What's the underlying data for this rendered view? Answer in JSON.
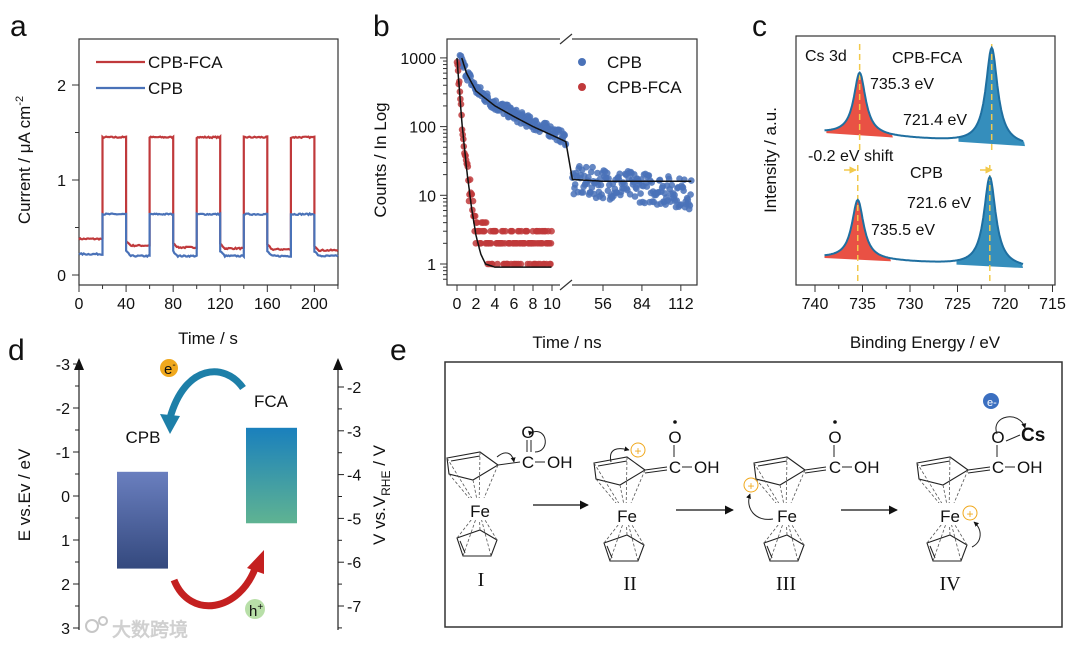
{
  "panels": {
    "a": "a",
    "b": "b",
    "c": "c",
    "d": "d",
    "e": "e"
  },
  "watermark": "大数跨境",
  "colors": {
    "red": "#c0393b",
    "blue": "#4a72b8",
    "peak_red": "#e8483a",
    "peak_blue": "#2a88b8",
    "guide": "#f2c94c",
    "orbit_e": "#f0a81c",
    "orbit_h": "#b8dfa8"
  },
  "chart_data": [
    {
      "id": "a",
      "type": "line",
      "xlabel": "Time / s",
      "ylabel_main": "Current / μA cm",
      "ylabel_sup": "-2",
      "xlim": [
        0,
        220
      ],
      "ylim": [
        -0.1,
        2.4
      ],
      "xticks": [
        0,
        40,
        80,
        120,
        160,
        200
      ],
      "yticks": [
        0,
        1,
        2
      ],
      "light_on_intervals": [
        [
          20,
          40
        ],
        [
          60,
          80
        ],
        [
          100,
          120
        ],
        [
          140,
          160
        ],
        [
          180,
          200
        ]
      ],
      "series": [
        {
          "name": "CPB-FCA",
          "color": "#c0393b",
          "on_level": 1.45,
          "off_levels": [
            0.38,
            0.31,
            0.29,
            0.28,
            0.27,
            0.26
          ]
        },
        {
          "name": "CPB",
          "color": "#4a72b8",
          "on_level": 0.64,
          "off_levels": [
            0.22,
            0.2,
            0.2,
            0.2,
            0.2,
            0.2
          ]
        }
      ],
      "legend": "top-left"
    },
    {
      "id": "b",
      "type": "scatter",
      "xlabel": "Time / ns",
      "ylabel": "Counts / In Log",
      "yscale": "log",
      "ylim": [
        0.5,
        2000
      ],
      "yticks": [
        "1",
        "10",
        "100",
        "1000"
      ],
      "xticks_left": [
        "0",
        "2",
        "4",
        "6",
        "8",
        "10"
      ],
      "xticks_right": [
        "56",
        "84",
        "112"
      ],
      "broken_x_axis": true,
      "series": [
        {
          "name": "CPB",
          "color": "#4a72b8",
          "x": [
            0.3,
            1,
            2,
            3,
            4,
            6,
            8,
            10,
            11.5,
            34,
            56,
            84,
            112,
            120
          ],
          "y": [
            1000,
            600,
            350,
            270,
            210,
            150,
            110,
            85,
            65,
            16,
            15,
            13,
            11,
            10
          ]
        },
        {
          "name": "CPB-FCA",
          "color": "#c0393b",
          "x": [
            0,
            0.3,
            0.6,
            1,
            1.5,
            2,
            3,
            4,
            6,
            8,
            10
          ],
          "y": [
            1000,
            300,
            80,
            25,
            8,
            4,
            2.5,
            2,
            2,
            2,
            2
          ]
        }
      ],
      "fits": [
        {
          "name": "CPB fit",
          "x": [
            0.5,
            1,
            2,
            4,
            6,
            8,
            10,
            11.5,
            34,
            56,
            84,
            120
          ],
          "y": [
            1000,
            600,
            330,
            200,
            140,
            100,
            75,
            60,
            17,
            16,
            16,
            16
          ]
        },
        {
          "name": "CPB-FCA fit",
          "x": [
            0,
            0.5,
            1,
            1.5,
            2,
            2.5,
            3,
            4,
            10
          ],
          "y": [
            1000,
            120,
            25,
            7,
            2.6,
            1.4,
            1.0,
            0.9,
            0.9
          ]
        }
      ],
      "legend": "top-right"
    },
    {
      "id": "c",
      "type": "line",
      "xlabel": "Binding Energy / eV",
      "ylabel": "Intensity / a.u.",
      "xlim": [
        742,
        715
      ],
      "xticks": [
        740,
        735,
        730,
        725,
        720,
        715
      ],
      "region": "Cs 3d",
      "spectra": [
        {
          "name": "CPB-FCA",
          "peaks": [
            {
              "center": 735.3,
              "height": 0.65,
              "label": "735.3 eV"
            },
            {
              "center": 721.4,
              "height": 1.0,
              "label": "721.4 eV"
            }
          ]
        },
        {
          "name": "CPB",
          "peaks": [
            {
              "center": 735.5,
              "height": 0.62,
              "label": "735.5 eV"
            },
            {
              "center": 721.6,
              "height": 0.93,
              "label": "721.6 eV"
            }
          ]
        }
      ],
      "shift_label": "-0.2 eV shift"
    },
    {
      "id": "d",
      "type": "diagram",
      "left_axis_label": "E vs.Ev / eV",
      "right_axis_main": "V vs.V",
      "right_axis_sub": "RHE",
      "right_axis_tail": " / V",
      "left_ticks": [
        "-3",
        "-2",
        "-1",
        "0",
        "1",
        "2",
        "3"
      ],
      "right_ticks": [
        "-2",
        "-3",
        "-4",
        "-5",
        "-6",
        "-7"
      ],
      "bands": [
        {
          "name": "CPB",
          "top": -0.55,
          "bottom": 1.65
        },
        {
          "name": "FCA",
          "top": -1.55,
          "bottom": 0.62
        }
      ],
      "electron": "e",
      "electron_sup": "-",
      "hole": "h",
      "hole_sup": "+"
    }
  ],
  "mechanism": {
    "steps": [
      "I",
      "II",
      "III",
      "IV"
    ],
    "fe": "Fe",
    "o": "O",
    "c": "C",
    "oh": "OH",
    "cs": "Cs",
    "plus": "+",
    "e": "e",
    "e_sup": "-"
  }
}
